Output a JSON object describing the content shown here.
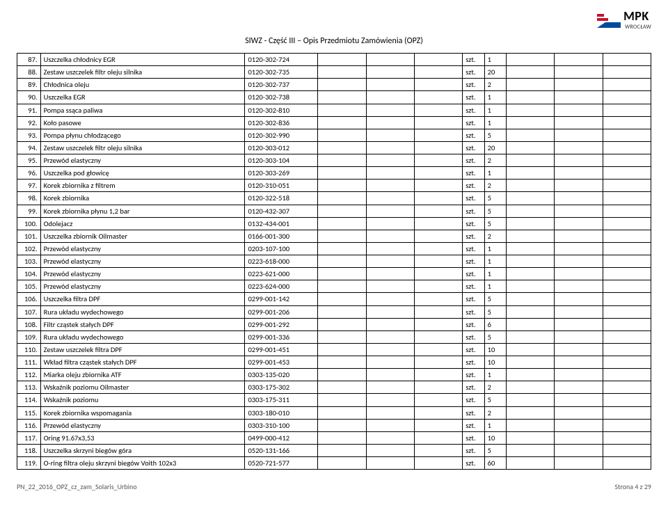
{
  "header": {
    "logo_name": "MPK",
    "logo_sub": "WROCŁAW",
    "logo_colors": {
      "red": "#c8102e",
      "blue": "#004b9b"
    }
  },
  "title": "SIWZ - Część III – Opis Przedmiotu Zamówienia (OPZ)",
  "table": {
    "columns": [
      "no",
      "name",
      "code",
      "b1",
      "b2",
      "b3",
      "unit",
      "qty",
      "b4",
      "b5",
      "b6"
    ],
    "rows": [
      {
        "no": "87.",
        "name": "Uszczelka chłodnicy EGR",
        "code": "0120-302-724",
        "unit": "szt.",
        "qty": "1"
      },
      {
        "no": "88.",
        "name": "Zestaw uszczelek filtr oleju silnika",
        "code": "0120-302-735",
        "unit": "szt.",
        "qty": "20"
      },
      {
        "no": "89.",
        "name": "Chłodnica oleju",
        "code": "0120-302-737",
        "unit": "szt.",
        "qty": "2"
      },
      {
        "no": "90.",
        "name": "Uszczelka EGR",
        "code": "0120-302-738",
        "unit": "szt.",
        "qty": "1"
      },
      {
        "no": "91.",
        "name": "Pompa ssąca paliwa",
        "code": "0120-302-810",
        "unit": "szt.",
        "qty": "1"
      },
      {
        "no": "92.",
        "name": "Koło pasowe",
        "code": "0120-302-836",
        "unit": "szt.",
        "qty": "1"
      },
      {
        "no": "93.",
        "name": "Pompa płynu chłodzącego",
        "code": "0120-302-990",
        "unit": "szt.",
        "qty": "5"
      },
      {
        "no": "94.",
        "name": "Zestaw uszczelek filtr oleju silnika",
        "code": "0120-303-012",
        "unit": "szt.",
        "qty": "20"
      },
      {
        "no": "95.",
        "name": "Przewód elastyczny",
        "code": "0120-303-104",
        "unit": "szt.",
        "qty": "2"
      },
      {
        "no": "96.",
        "name": "Uszczelka pod głowicę",
        "code": "0120-303-269",
        "unit": "szt.",
        "qty": "1"
      },
      {
        "no": "97.",
        "name": "Korek zbiornika z filtrem",
        "code": "0120-310-051",
        "unit": "szt.",
        "qty": "2"
      },
      {
        "no": "98.",
        "name": "Korek zbiornika",
        "code": "0120-322-518",
        "unit": "szt.",
        "qty": "5"
      },
      {
        "no": "99.",
        "name": "Korek zbiornika płynu 1,2 bar",
        "code": "0120-432-307",
        "unit": "szt.",
        "qty": "5"
      },
      {
        "no": "100.",
        "name": "Odolejacz",
        "code": "0132-434-001",
        "unit": "szt.",
        "qty": "5"
      },
      {
        "no": "101.",
        "name": "Uszczelka zbiornik Oilmaster",
        "code": "0166-001-300",
        "unit": "szt.",
        "qty": "2"
      },
      {
        "no": "102.",
        "name": "Przewód elastyczny",
        "code": "0203-107-100",
        "unit": "szt.",
        "qty": "1"
      },
      {
        "no": "103.",
        "name": "Przewód elastyczny",
        "code": "0223-618-000",
        "unit": "szt.",
        "qty": "1"
      },
      {
        "no": "104.",
        "name": "Przewód elastyczny",
        "code": "0223-621-000",
        "unit": "szt.",
        "qty": "1"
      },
      {
        "no": "105.",
        "name": "Przewód elastyczny",
        "code": "0223-624-000",
        "unit": "szt.",
        "qty": "1"
      },
      {
        "no": "106.",
        "name": "Uszczelka filtra DPF",
        "code": "0299-001-142",
        "unit": "szt.",
        "qty": "5"
      },
      {
        "no": "107.",
        "name": "Rura układu wydechowego",
        "code": "0299-001-206",
        "unit": "szt.",
        "qty": "5"
      },
      {
        "no": "108.",
        "name": "Filtr cząstek stałych DPF",
        "code": "0299-001-292",
        "unit": "szt.",
        "qty": "6"
      },
      {
        "no": "109.",
        "name": "Rura układu wydechowego",
        "code": "0299-001-336",
        "unit": "szt.",
        "qty": "5"
      },
      {
        "no": "110.",
        "name": "Zestaw uszczelek filtra DPF",
        "code": "0299-001-451",
        "unit": "szt.",
        "qty": "10"
      },
      {
        "no": "111.",
        "name": "Wkład filtra cząstek stałych  DPF",
        "code": "0299-001-453",
        "unit": "szt.",
        "qty": "10"
      },
      {
        "no": "112.",
        "name": "Miarka oleju zbiornika ATF",
        "code": "0303-135-020",
        "unit": "szt.",
        "qty": "1"
      },
      {
        "no": "113.",
        "name": "Wskaźnik poziomu Oilmaster",
        "code": "0303-175-302",
        "unit": "szt.",
        "qty": "2"
      },
      {
        "no": "114.",
        "name": "Wskaźnik poziomu",
        "code": "0303-175-311",
        "unit": "szt.",
        "qty": "5"
      },
      {
        "no": "115.",
        "name": "Korek zbiornika wspomagania",
        "code": "0303-180-010",
        "unit": "szt.",
        "qty": "2"
      },
      {
        "no": "116.",
        "name": "Przewód elastyczny",
        "code": "0303-310-100",
        "unit": "szt.",
        "qty": "1"
      },
      {
        "no": "117.",
        "name": "Oring  91.67x3,53",
        "code": "0499-000-412",
        "unit": "szt.",
        "qty": "10"
      },
      {
        "no": "118.",
        "name": "Uszczelka skrzyni biegów góra",
        "code": "0520-131-166",
        "unit": "szt.",
        "qty": "5"
      },
      {
        "no": "119.",
        "name": "O-ring filtra oleju skrzyni biegów Voith  102x3",
        "code": "0520-721-577",
        "unit": "szt.",
        "qty": "60"
      }
    ]
  },
  "footer": {
    "left": "PN_22_2016_OPZ_cz_zam_Solaris_Urbino",
    "right": "Strona 4 z 29"
  }
}
